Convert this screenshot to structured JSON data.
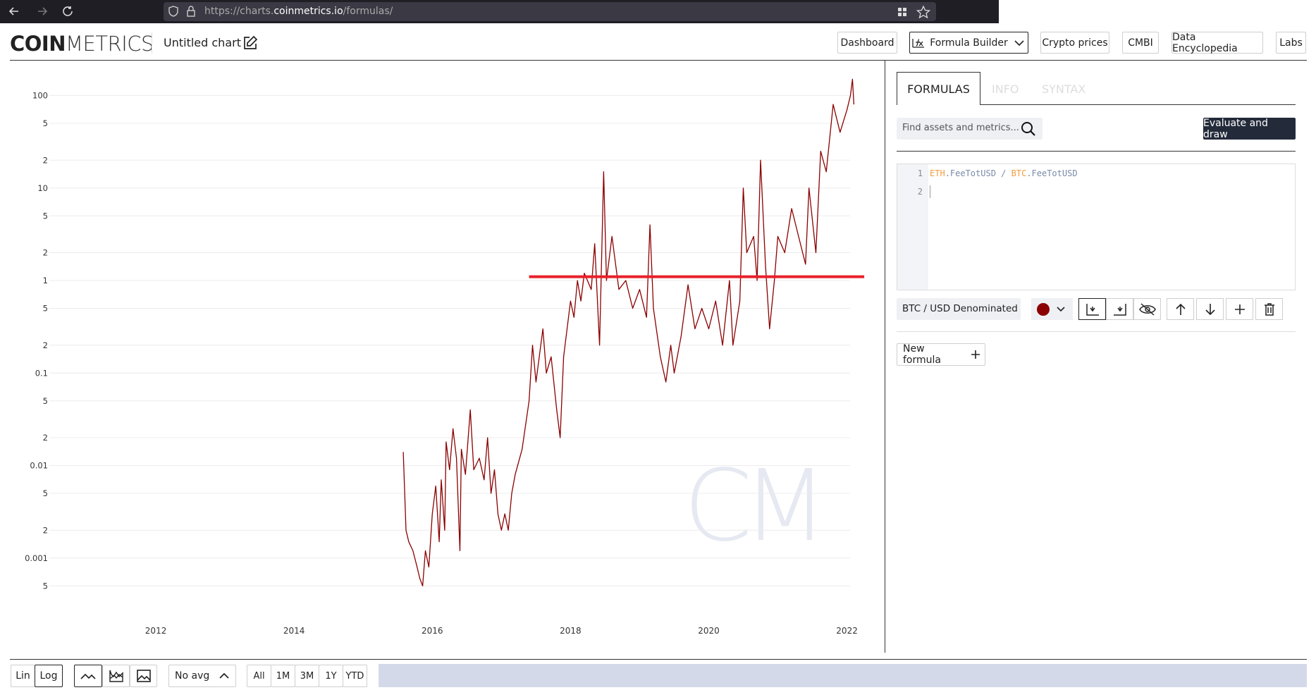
{
  "browser": {
    "url_prefix": "https://charts.",
    "url_domain": "coinmetrics.io",
    "url_path": "/formulas/"
  },
  "header": {
    "logo": [
      "COIN",
      "METRICS"
    ],
    "chart_title": "Untitled chart",
    "nav": [
      "Dashboard",
      "Formula Builder",
      "Crypto prices",
      "CMBI",
      "Data Encyclopedia",
      "Labs"
    ]
  },
  "chart_data": {
    "type": "line",
    "log_y": true,
    "grid": true,
    "watermark": "CM",
    "xlim": [
      2010.5,
      2022.3
    ],
    "xticks": [
      2012,
      2014,
      2016,
      2018,
      2020,
      2022
    ],
    "ylim": [
      0.0004,
      200
    ],
    "yticks": [
      {
        "value": 0.0005,
        "label": "5"
      },
      0.001,
      {
        "value": 0.002,
        "label": "2"
      },
      {
        "value": 0.005,
        "label": "5"
      },
      0.01,
      {
        "value": 0.02,
        "label": "2"
      },
      {
        "value": 0.05,
        "label": "5"
      },
      0.1,
      {
        "value": 0.2,
        "label": "2"
      },
      {
        "value": 0.5,
        "label": "5"
      },
      1,
      {
        "value": 2,
        "label": "2"
      },
      {
        "value": 5,
        "label": "5"
      },
      10,
      {
        "value": 20,
        "label": "2"
      },
      {
        "value": 50,
        "label": "5"
      },
      100
    ],
    "series": [
      {
        "name": "BTC / USD Denominated (",
        "color": "#8b0000",
        "x": [
          2015.58,
          2015.62,
          2015.66,
          2015.72,
          2015.78,
          2015.82,
          2015.86,
          2015.9,
          2015.95,
          2016.0,
          2016.05,
          2016.1,
          2016.13,
          2016.18,
          2016.2,
          2016.25,
          2016.3,
          2016.35,
          2016.4,
          2016.42,
          2016.48,
          2016.55,
          2016.6,
          2016.68,
          2016.75,
          2016.8,
          2016.85,
          2016.9,
          2016.95,
          2017.0,
          2017.05,
          2017.1,
          2017.15,
          2017.2,
          2017.3,
          2017.4,
          2017.45,
          2017.5,
          2017.6,
          2017.65,
          2017.72,
          2017.8,
          2017.85,
          2017.9,
          2018.0,
          2018.05,
          2018.1,
          2018.15,
          2018.2,
          2018.3,
          2018.35,
          2018.42,
          2018.48,
          2018.52,
          2018.6,
          2018.7,
          2018.8,
          2018.9,
          2019.0,
          2019.1,
          2019.15,
          2019.2,
          2019.3,
          2019.38,
          2019.45,
          2019.5,
          2019.6,
          2019.7,
          2019.8,
          2019.9,
          2020.0,
          2020.1,
          2020.2,
          2020.3,
          2020.35,
          2020.45,
          2020.5,
          2020.55,
          2020.65,
          2020.7,
          2020.75,
          2020.82,
          2020.88,
          2020.95,
          2021.0,
          2021.1,
          2021.2,
          2021.3,
          2021.4,
          2021.45,
          2021.55,
          2021.62,
          2021.7,
          2021.8,
          2021.9,
          2022.0,
          2022.05,
          2022.08,
          2022.1
        ],
        "values": [
          0.014,
          0.002,
          0.0015,
          0.0012,
          0.0008,
          0.0006,
          0.0005,
          0.0012,
          0.0008,
          0.003,
          0.006,
          0.0015,
          0.007,
          0.002,
          0.018,
          0.009,
          0.025,
          0.012,
          0.0012,
          0.015,
          0.008,
          0.04,
          0.009,
          0.012,
          0.007,
          0.02,
          0.005,
          0.009,
          0.003,
          0.002,
          0.003,
          0.002,
          0.005,
          0.008,
          0.015,
          0.05,
          0.2,
          0.08,
          0.3,
          0.1,
          0.15,
          0.04,
          0.02,
          0.15,
          0.6,
          0.4,
          1.0,
          0.6,
          1.2,
          0.8,
          2.5,
          0.2,
          15,
          1.0,
          3,
          0.8,
          1.0,
          0.5,
          0.8,
          0.4,
          4,
          0.5,
          0.15,
          0.08,
          0.2,
          0.1,
          0.25,
          0.9,
          0.3,
          0.5,
          0.3,
          0.6,
          0.2,
          1.0,
          0.2,
          0.6,
          10,
          2,
          3,
          1.0,
          20,
          1.5,
          0.3,
          1.0,
          3,
          2,
          6,
          3,
          1.5,
          10,
          2,
          25,
          15,
          80,
          40,
          70,
          100,
          150,
          80
        ]
      }
    ],
    "annotation_line": {
      "x": [
        2017.4,
        2022.25
      ],
      "values": [
        1.1,
        1.1
      ],
      "color": "#e8202a"
    }
  },
  "panel": {
    "tabs": [
      "FORMULAS",
      "INFO",
      "SYNTAX"
    ],
    "search_placeholder": "Find assets and metrics...",
    "evaluate": "Evaluate and draw",
    "editor": {
      "line_numbers": [
        1,
        2
      ],
      "tokens": [
        "ETH",
        ".FeeTotUSD",
        " / ",
        "BTC",
        ".FeeTotUSD"
      ]
    },
    "new_formula": "New formula"
  },
  "toolbar": {
    "scale": [
      "Lin",
      "Log"
    ],
    "average": "No avg",
    "ranges": [
      "All",
      "1M",
      "3M",
      "1Y",
      "YTD"
    ]
  }
}
